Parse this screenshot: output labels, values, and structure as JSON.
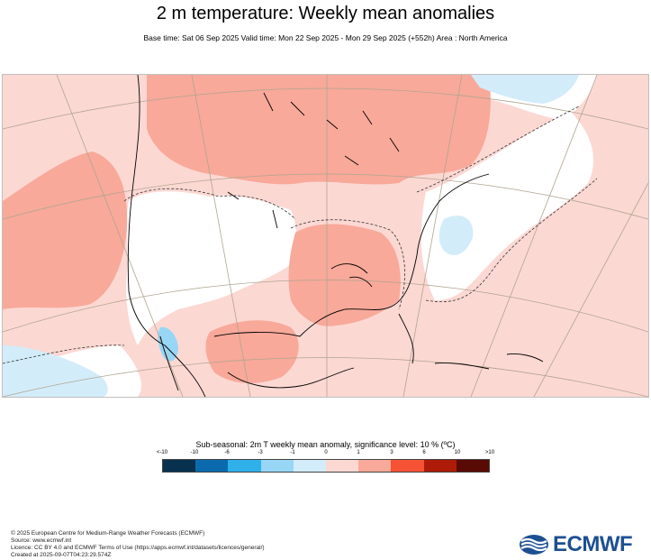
{
  "title": "2 m temperature: Weekly mean anomalies",
  "subtitle": "Base time: Sat 06 Sep 2025 Valid time: Mon 22 Sep 2025 - Mon 29 Sep 2025 (+552h) Area : North America",
  "legend": {
    "title": "Sub-seasonal: 2m T weekly mean anomaly, significance level: 10 % (ºC)",
    "ticks": [
      "<-10",
      "-10",
      "-6",
      "-3",
      "-1",
      "0",
      "1",
      "3",
      "6",
      "10",
      ">10"
    ],
    "colors": [
      "#08304f",
      "#0b6aad",
      "#2fb0ea",
      "#98d6f5",
      "#d3ecfa",
      "#fcd8d3",
      "#f8a99a",
      "#f65235",
      "#ae1c09",
      "#5a0a04"
    ]
  },
  "map_colors": {
    "ocean_and_neutral": "#ffffff",
    "warm_light": "#fcd8d3",
    "warm_medium": "#f8a99a",
    "cool_light": "#d3ecfa",
    "cool_medium": "#98d6f5",
    "graticule": "#b0a58f",
    "coastline": "#000000"
  },
  "footer": {
    "line1": "© 2025 European Centre for Medium-Range Weather Forecasts (ECMWF)",
    "line2": "Source: www.ecmwf.int",
    "line3": "Licence: CC BY 4.0 and ECMWF Terms of Use (https://apps.ecmwf.int/datasets/licences/general/)",
    "line4": "Created at 2025-09-07T04:23:29.574Z"
  },
  "logo": {
    "text": "ECMWF"
  }
}
